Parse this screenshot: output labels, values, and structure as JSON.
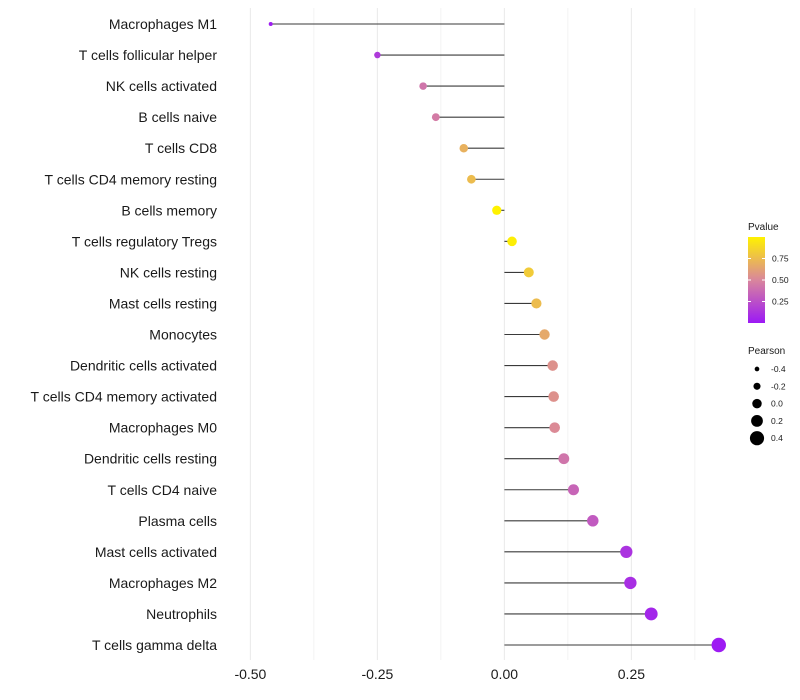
{
  "chart_data": {
    "type": "lollipop",
    "title": "",
    "xlabel": "",
    "ylabel": "",
    "xlim": [
      -0.55,
      0.45
    ],
    "x_ticks": [
      -0.5,
      -0.25,
      0.0,
      0.25
    ],
    "x_tick_labels": [
      "-0.50",
      "-0.25",
      "0.00",
      "0.25"
    ],
    "grid": true,
    "categories": [
      "Macrophages M1",
      "T cells follicular helper",
      "NK cells activated",
      "B cells naive",
      "T cells CD8",
      "T cells CD4 memory resting",
      "B cells memory",
      "T cells regulatory  Tregs ",
      "NK cells resting",
      "Mast cells resting",
      "Monocytes",
      "Dendritic cells activated",
      "T cells CD4 memory activated",
      "Macrophages M0",
      "Dendritic cells resting",
      "T cells CD4 naive",
      "Plasma cells",
      "Mast cells activated",
      "Macrophages M2",
      "Neutrophils",
      "T cells gamma delta"
    ],
    "pearson": [
      -0.46,
      -0.25,
      -0.16,
      -0.135,
      -0.08,
      -0.065,
      -0.015,
      0.015,
      0.048,
      0.063,
      0.079,
      0.095,
      0.097,
      0.099,
      0.117,
      0.136,
      0.174,
      0.24,
      0.248,
      0.289,
      0.422
    ],
    "pvalue": [
      0.02,
      0.15,
      0.42,
      0.45,
      0.7,
      0.75,
      1.0,
      0.98,
      0.82,
      0.75,
      0.66,
      0.55,
      0.55,
      0.52,
      0.42,
      0.35,
      0.3,
      0.12,
      0.1,
      0.06,
      0.01
    ],
    "legend_pvalue": {
      "title": "Pvalue",
      "ticks": [
        0.75,
        0.5,
        0.25
      ],
      "tick_labels": [
        "0.75",
        "0.50",
        "0.25"
      ],
      "color_low": "#9c19f5",
      "color_mid": "#d9869c",
      "color_high": "#fff200",
      "position": "right"
    },
    "legend_pearson": {
      "title": "Pearson",
      "values": [
        -0.4,
        -0.2,
        0.0,
        0.2,
        0.4
      ],
      "labels": [
        "-0.4",
        "-0.2",
        "0.0",
        "0.2",
        "0.4"
      ],
      "position": "right"
    }
  }
}
